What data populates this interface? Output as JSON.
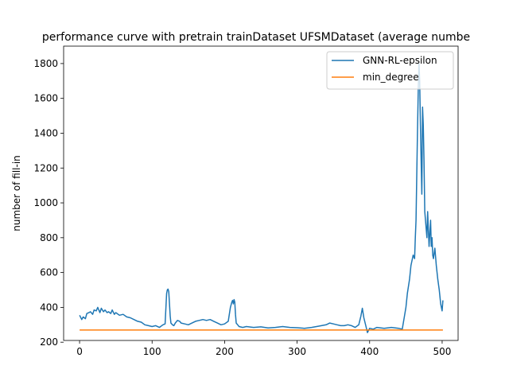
{
  "chart_data": {
    "type": "line",
    "title": "performance curve with pretrain trainDataset UFSMDataset (average numbe",
    "xlabel": "",
    "ylabel": "number of fill-in",
    "xlim": [
      -22,
      522
    ],
    "ylim": [
      210,
      1900
    ],
    "xticks": [
      0,
      100,
      200,
      300,
      400,
      500
    ],
    "yticks": [
      200,
      400,
      600,
      800,
      1000,
      1200,
      1400,
      1600,
      1800
    ],
    "grid": false,
    "legend_position": "top-right",
    "series": [
      {
        "name": "GNN-RL-epsilon",
        "color": "#1f77b4",
        "x": [
          0,
          3,
          5,
          8,
          10,
          13,
          15,
          18,
          20,
          23,
          25,
          28,
          30,
          33,
          35,
          38,
          40,
          43,
          45,
          48,
          50,
          55,
          60,
          65,
          70,
          75,
          80,
          85,
          90,
          95,
          100,
          105,
          110,
          115,
          118,
          120,
          121,
          122,
          123,
          124,
          125,
          126,
          128,
          130,
          132,
          135,
          138,
          140,
          145,
          150,
          155,
          160,
          165,
          170,
          175,
          180,
          185,
          190,
          195,
          200,
          205,
          208,
          210,
          211,
          212,
          213,
          214,
          215,
          216,
          218,
          220,
          225,
          230,
          240,
          250,
          260,
          270,
          280,
          290,
          300,
          310,
          320,
          330,
          340,
          345,
          350,
          355,
          360,
          365,
          370,
          375,
          380,
          385,
          388,
          390,
          392,
          395,
          397,
          400,
          405,
          410,
          420,
          430,
          440,
          445,
          450,
          452,
          455,
          457,
          460,
          462,
          463,
          464,
          465,
          466,
          467,
          468,
          469,
          470,
          471,
          472,
          473,
          474,
          475,
          476,
          477,
          478,
          479,
          480,
          481,
          482,
          483,
          484,
          485,
          486,
          487,
          488,
          490,
          492,
          494,
          496,
          498,
          500,
          501
        ],
        "values": [
          355,
          330,
          345,
          335,
          365,
          370,
          375,
          360,
          385,
          380,
          400,
          370,
          395,
          375,
          385,
          370,
          375,
          365,
          385,
          360,
          370,
          355,
          360,
          345,
          340,
          330,
          320,
          315,
          300,
          295,
          290,
          295,
          285,
          300,
          305,
          480,
          500,
          505,
          490,
          420,
          350,
          310,
          300,
          295,
          310,
          325,
          320,
          310,
          305,
          300,
          310,
          320,
          325,
          330,
          325,
          330,
          320,
          310,
          300,
          305,
          320,
          400,
          430,
          440,
          420,
          445,
          430,
          360,
          310,
          300,
          290,
          285,
          290,
          285,
          288,
          282,
          285,
          290,
          285,
          283,
          280,
          285,
          292,
          300,
          310,
          305,
          300,
          295,
          295,
          300,
          295,
          285,
          300,
          350,
          395,
          340,
          290,
          255,
          280,
          275,
          285,
          280,
          285,
          280,
          275,
          400,
          480,
          560,
          640,
          700,
          680,
          800,
          900,
          1150,
          1400,
          1650,
          1800,
          1700,
          1450,
          1250,
          1050,
          1550,
          1450,
          1250,
          950,
          900,
          850,
          800,
          950,
          850,
          750,
          820,
          900,
          750,
          800,
          700,
          680,
          740,
          640,
          560,
          500,
          420,
          380,
          440
        ]
      },
      {
        "name": "min_degree",
        "color": "#ff7f0e",
        "x": [
          0,
          501
        ],
        "values": [
          270,
          270
        ]
      }
    ]
  }
}
